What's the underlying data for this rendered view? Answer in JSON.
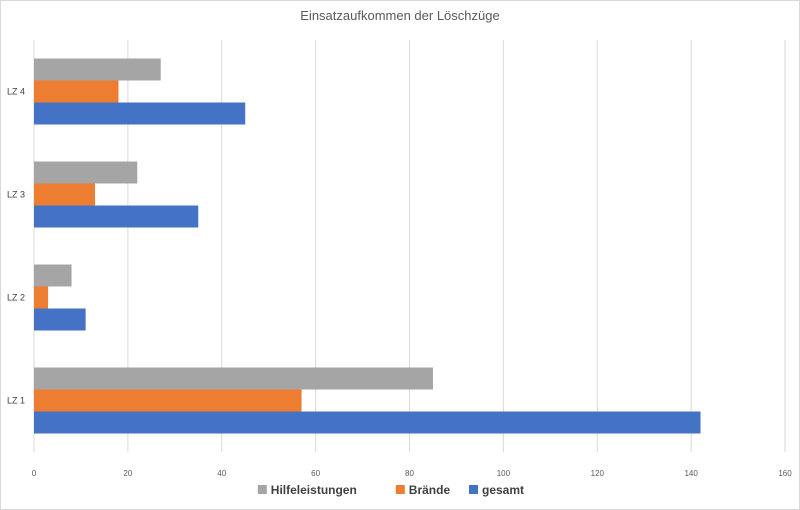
{
  "chart_data": {
    "type": "bar",
    "orientation": "horizontal",
    "title": "Einsatzaufkommen der Löschzüge",
    "categories": [
      "LZ 1",
      "LZ 2",
      "LZ 3",
      "LZ 4"
    ],
    "series": [
      {
        "name": "gesamt",
        "color": "#4472c4",
        "values": [
          142,
          11,
          35,
          45
        ]
      },
      {
        "name": "Brände",
        "color": "#ed7d31",
        "values": [
          57,
          3,
          13,
          18
        ]
      },
      {
        "name": "Hilfeleistungen",
        "color": "#a5a5a5",
        "values": [
          85,
          8,
          22,
          27
        ]
      }
    ],
    "xlim": [
      0,
      160
    ],
    "xticks": [
      "0",
      "20",
      "40",
      "60",
      "80",
      "100",
      "120",
      "140",
      "160"
    ],
    "legend_position": "bottom",
    "legend_order": [
      "Hilfeleistungen",
      "Brände",
      "gesamt"
    ],
    "grid": true
  }
}
